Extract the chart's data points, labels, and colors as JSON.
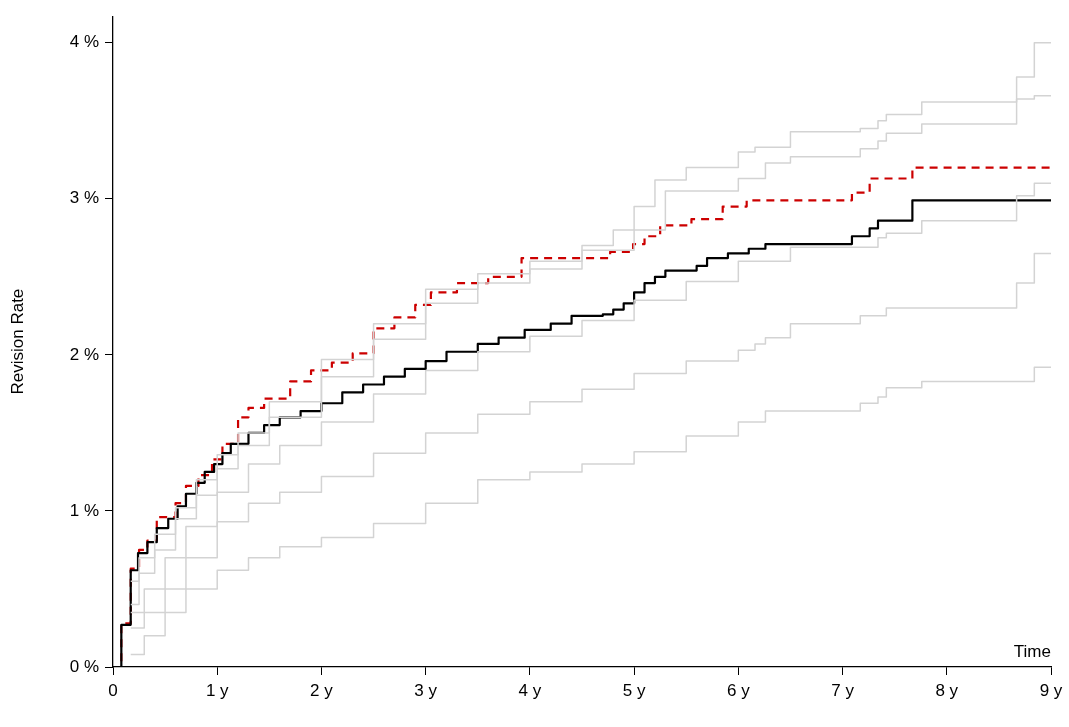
{
  "chart_data": {
    "type": "step",
    "xlabel": "Time",
    "ylabel": "Revision Rate",
    "xlim": [
      0,
      9
    ],
    "ylim": [
      0,
      4.17
    ],
    "xticks": [
      0,
      {
        "value": 1,
        "label": "1 y"
      },
      {
        "value": 2,
        "label": "2 y"
      },
      {
        "value": 3,
        "label": "3 y"
      },
      {
        "value": 4,
        "label": "4 y"
      },
      {
        "value": 5,
        "label": "5 y"
      },
      {
        "value": 6,
        "label": "6 y"
      },
      {
        "value": 7,
        "label": "7 y"
      },
      {
        "value": 8,
        "label": "8 y"
      },
      {
        "value": 9,
        "label": "9 y"
      }
    ],
    "yticks": [
      {
        "value": 0,
        "label": "0 %"
      },
      {
        "value": 1,
        "label": "1 %"
      },
      {
        "value": 2,
        "label": "2 %"
      },
      {
        "value": 3,
        "label": "3 %"
      },
      {
        "value": 4,
        "label": "4 %"
      }
    ],
    "grid": false,
    "legend": false,
    "series": [
      {
        "color": "#d3d3d3",
        "line_style": "solid",
        "x": [
          0.17,
          0.25,
          0.4,
          0.6,
          0.8,
          1.0,
          1.2,
          1.5,
          2.0,
          2.5,
          3.0,
          3.5,
          4.0,
          4.5,
          4.8,
          5.0,
          5.2,
          5.5,
          6.0,
          6.16,
          6.5,
          7.17,
          7.34,
          7.42,
          7.76,
          8.67,
          8.84,
          9
        ],
        "values": [
          0.55,
          0.7,
          0.85,
          1.02,
          1.2,
          1.36,
          1.5,
          1.7,
          1.97,
          2.2,
          2.42,
          2.52,
          2.6,
          2.7,
          2.8,
          2.95,
          3.12,
          3.2,
          3.3,
          3.33,
          3.43,
          3.45,
          3.5,
          3.54,
          3.62,
          3.78,
          4.0,
          4.0
        ]
      },
      {
        "color": "#d3d3d3",
        "line_style": "solid",
        "x": [
          0.17,
          0.25,
          0.4,
          0.6,
          0.8,
          1.0,
          1.2,
          1.5,
          2.0,
          2.5,
          3.0,
          3.5,
          4.0,
          4.5,
          5.0,
          5.3,
          6.0,
          6.26,
          6.5,
          7.17,
          7.34,
          7.42,
          7.76,
          8.67,
          8.84,
          9
        ],
        "values": [
          0.4,
          0.6,
          0.75,
          0.95,
          1.1,
          1.27,
          1.42,
          1.6,
          1.86,
          2.1,
          2.33,
          2.46,
          2.55,
          2.67,
          2.8,
          3.05,
          3.13,
          3.23,
          3.27,
          3.32,
          3.37,
          3.42,
          3.48,
          3.64,
          3.66,
          3.66
        ]
      },
      {
        "color": "#d3d3d3",
        "line_style": "solid",
        "x": [
          0.17,
          0.3,
          0.5,
          0.7,
          1.0,
          1.3,
          1.6,
          2.0,
          2.5,
          3.0,
          3.5,
          4.0,
          4.5,
          5.0,
          5.5,
          6.0,
          6.5,
          7.34,
          7.42,
          7.76,
          8.67,
          8.84,
          9
        ],
        "values": [
          0.35,
          0.5,
          0.7,
          0.9,
          1.12,
          1.3,
          1.42,
          1.57,
          1.75,
          1.9,
          2.02,
          2.12,
          2.22,
          2.35,
          2.47,
          2.6,
          2.69,
          2.75,
          2.78,
          2.86,
          3.02,
          3.1,
          3.1
        ]
      },
      {
        "color": "#d3d3d3",
        "line_style": "solid",
        "x": [
          0.17,
          0.3,
          0.5,
          0.7,
          1.0,
          1.3,
          1.6,
          2.0,
          2.5,
          3.0,
          3.5,
          4.0,
          4.5,
          5.0,
          5.5,
          6.0,
          6.16,
          6.26,
          6.5,
          7.17,
          7.42,
          8.67,
          8.84,
          9
        ],
        "values": [
          0.25,
          0.35,
          0.5,
          0.7,
          0.93,
          1.05,
          1.12,
          1.22,
          1.37,
          1.5,
          1.62,
          1.7,
          1.78,
          1.88,
          1.96,
          2.03,
          2.07,
          2.11,
          2.2,
          2.25,
          2.3,
          2.46,
          2.65,
          2.65
        ]
      },
      {
        "color": "#d3d3d3",
        "line_style": "solid",
        "x": [
          0.17,
          0.3,
          0.5,
          0.7,
          1.0,
          1.3,
          1.6,
          2.0,
          2.5,
          3.0,
          3.5,
          4.0,
          4.5,
          5.0,
          5.5,
          6.0,
          6.26,
          7.17,
          7.34,
          7.42,
          7.76,
          8.84,
          9
        ],
        "values": [
          0.08,
          0.2,
          0.35,
          0.5,
          0.62,
          0.7,
          0.77,
          0.83,
          0.92,
          1.05,
          1.2,
          1.25,
          1.3,
          1.38,
          1.48,
          1.57,
          1.64,
          1.69,
          1.73,
          1.79,
          1.83,
          1.92,
          1.92
        ]
      },
      {
        "color": "#000000",
        "line_style": "solid",
        "x": [
          0,
          0.08,
          0.17,
          0.24,
          0.33,
          0.42,
          0.53,
          0.62,
          0.7,
          0.8,
          0.88,
          0.97,
          1.05,
          1.13,
          1.3,
          1.45,
          1.6,
          1.8,
          2.0,
          2.2,
          2.4,
          2.6,
          2.8,
          3.0,
          3.2,
          3.5,
          3.7,
          3.95,
          4.2,
          4.4,
          4.7,
          4.8,
          4.9,
          5.0,
          5.1,
          5.2,
          5.3,
          5.6,
          5.7,
          5.9,
          6.1,
          6.26,
          7.09,
          7.26,
          7.34,
          7.67,
          9
        ],
        "values": [
          0,
          0.27,
          0.62,
          0.73,
          0.8,
          0.89,
          0.95,
          1.03,
          1.11,
          1.18,
          1.25,
          1.3,
          1.37,
          1.43,
          1.5,
          1.55,
          1.6,
          1.64,
          1.69,
          1.76,
          1.81,
          1.86,
          1.91,
          1.96,
          2.02,
          2.07,
          2.11,
          2.16,
          2.2,
          2.25,
          2.26,
          2.29,
          2.33,
          2.4,
          2.46,
          2.5,
          2.54,
          2.57,
          2.62,
          2.65,
          2.68,
          2.71,
          2.76,
          2.81,
          2.86,
          2.99,
          2.99
        ]
      },
      {
        "color": "#cc0000",
        "line_style": "dashed",
        "x": [
          0,
          0.08,
          0.17,
          0.25,
          0.33,
          0.42,
          0.6,
          0.7,
          0.82,
          0.95,
          1.05,
          1.2,
          1.3,
          1.45,
          1.7,
          1.9,
          2.1,
          2.3,
          2.5,
          2.7,
          2.9,
          3.05,
          3.3,
          3.6,
          3.92,
          4.77,
          4.99,
          5.1,
          5.25,
          5.55,
          5.85,
          6.08,
          7.09,
          7.26,
          7.67,
          9
        ],
        "values": [
          0,
          0.28,
          0.63,
          0.75,
          0.81,
          0.96,
          1.05,
          1.16,
          1.23,
          1.33,
          1.43,
          1.6,
          1.66,
          1.72,
          1.83,
          1.9,
          1.95,
          2.01,
          2.17,
          2.24,
          2.32,
          2.4,
          2.46,
          2.5,
          2.62,
          2.66,
          2.71,
          2.76,
          2.83,
          2.87,
          2.95,
          2.99,
          3.04,
          3.13,
          3.2,
          3.2
        ]
      }
    ]
  }
}
